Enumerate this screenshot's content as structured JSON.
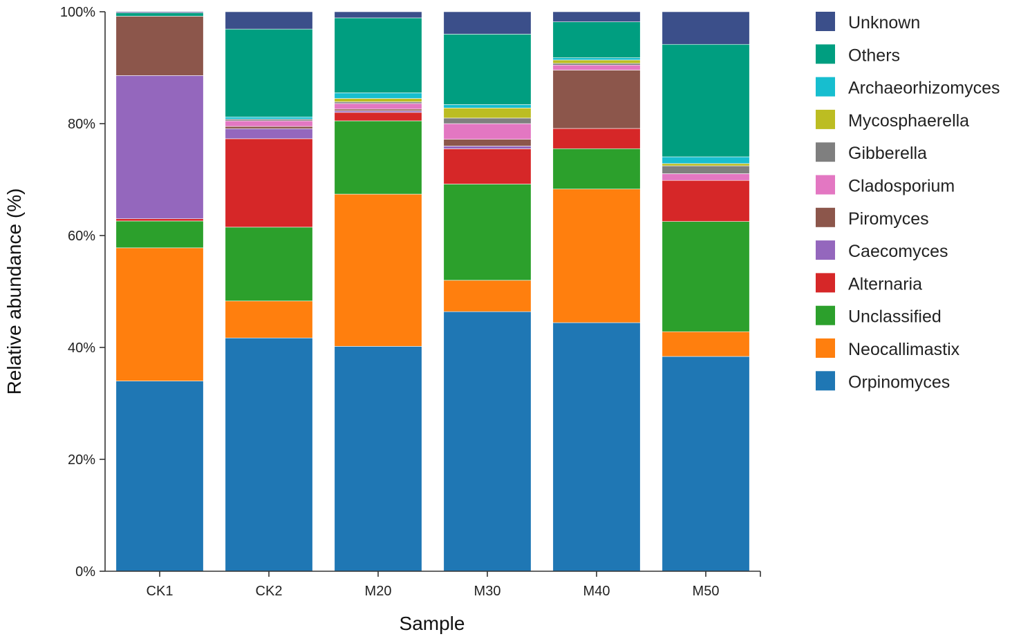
{
  "chart_data": {
    "type": "bar",
    "stacked": true,
    "title": "",
    "xlabel": "Sample",
    "ylabel": "Relative abundance (%)",
    "ylim": [
      0,
      100
    ],
    "yticks": [
      "0%",
      "20%",
      "40%",
      "60%",
      "80%",
      "100%"
    ],
    "ytick_values": [
      0,
      20,
      40,
      60,
      80,
      100
    ],
    "grid": false,
    "legend_position": "right",
    "categories": [
      "CK1",
      "CK2",
      "M20",
      "M30",
      "M40",
      "M50"
    ],
    "series": [
      {
        "name": "Orpinomyces",
        "color": "#1f77b4",
        "values": [
          34.0,
          41.7,
          40.2,
          46.4,
          44.3,
          38.2
        ]
      },
      {
        "name": "Neocallimastix",
        "color": "#ff7f0e",
        "values": [
          23.8,
          6.6,
          27.2,
          5.6,
          23.8,
          4.4
        ]
      },
      {
        "name": "Unclassified",
        "color": "#2ca02c",
        "values": [
          4.8,
          13.2,
          13.1,
          17.2,
          7.2,
          19.6
        ]
      },
      {
        "name": "Alternaria",
        "color": "#d62728",
        "values": [
          0.4,
          15.8,
          1.5,
          6.3,
          3.6,
          7.3
        ]
      },
      {
        "name": "Caecomyces",
        "color": "#9467bd",
        "values": [
          25.6,
          1.8,
          0.3,
          0.5,
          0.0,
          0.0
        ]
      },
      {
        "name": "Piromyces",
        "color": "#8c564b",
        "values": [
          10.6,
          0.4,
          0.3,
          1.2,
          10.4,
          0.0
        ]
      },
      {
        "name": "Cladosporium",
        "color": "#e377c2",
        "values": [
          0.0,
          1.0,
          1.0,
          2.8,
          0.9,
          1.2
        ]
      },
      {
        "name": "Gibberella",
        "color": "#7f7f7f",
        "values": [
          0.0,
          0.3,
          0.3,
          1.0,
          0.3,
          1.4
        ]
      },
      {
        "name": "Mycosphaerella",
        "color": "#bcbd22",
        "values": [
          0.0,
          0.0,
          0.6,
          1.8,
          0.6,
          0.4
        ]
      },
      {
        "name": "Archaeorhizomyces",
        "color": "#17becf",
        "values": [
          0.0,
          0.4,
          1.0,
          0.6,
          0.4,
          1.2
        ]
      },
      {
        "name": "Others",
        "color": "#009e80",
        "values": [
          0.6,
          15.7,
          13.4,
          12.6,
          6.4,
          20.0
        ]
      },
      {
        "name": "Unknown",
        "color": "#3b4f8a",
        "values": [
          0.2,
          3.1,
          1.1,
          4.0,
          1.8,
          5.8
        ]
      }
    ]
  }
}
